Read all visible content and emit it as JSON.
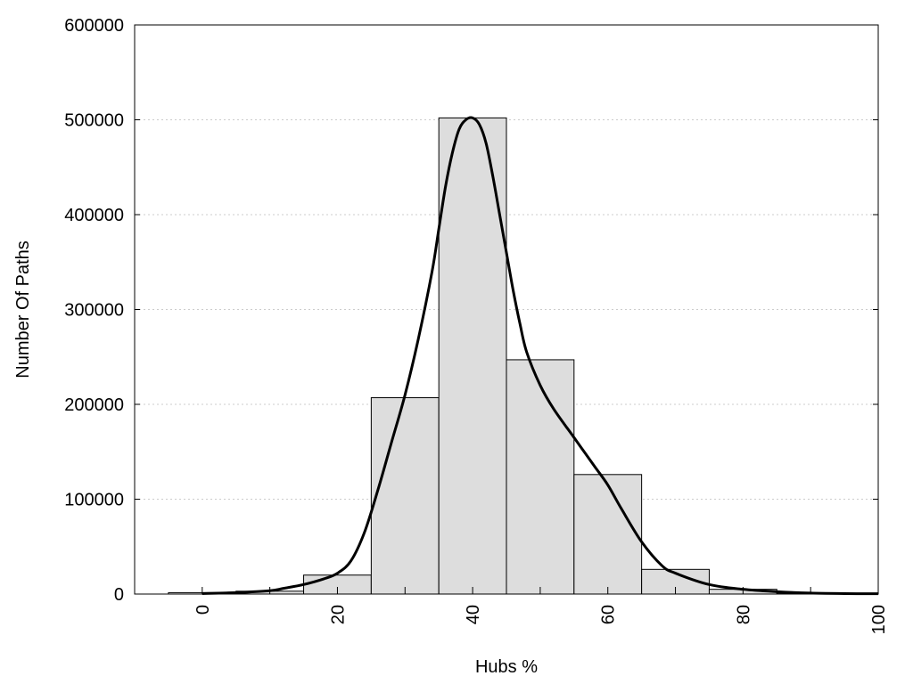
{
  "chart_data": {
    "type": "bar",
    "title": "",
    "xlabel": "Hubs %",
    "ylabel": "Number Of Paths",
    "xlim": [
      -10,
      100
    ],
    "ylim": [
      0,
      600000
    ],
    "grid": "horizontal dotted",
    "legend": "none",
    "x_ticks": [
      0,
      20,
      40,
      60,
      80,
      100
    ],
    "y_ticks": [
      0,
      100000,
      200000,
      300000,
      400000,
      500000,
      600000
    ],
    "bin_width": 10,
    "bins": [
      {
        "center": 0,
        "value": 1500
      },
      {
        "center": 10,
        "value": 3000
      },
      {
        "center": 20,
        "value": 20000
      },
      {
        "center": 30,
        "value": 207000
      },
      {
        "center": 40,
        "value": 502000
      },
      {
        "center": 50,
        "value": 247000
      },
      {
        "center": 60,
        "value": 126000
      },
      {
        "center": 70,
        "value": 26000
      },
      {
        "center": 80,
        "value": 5000
      },
      {
        "center": 90,
        "value": 1000
      }
    ],
    "series": [
      {
        "type": "line",
        "x": [
          0,
          5,
          10,
          12,
          15,
          18,
          20,
          22,
          24,
          26,
          28,
          30,
          32,
          34,
          35,
          36,
          37,
          38,
          39,
          40,
          41,
          42,
          43,
          44,
          45,
          46,
          47,
          48,
          50,
          52,
          55,
          58,
          60,
          62,
          65,
          68,
          70,
          75,
          80,
          85,
          90,
          95,
          100
        ],
        "y": [
          500,
          1500,
          3500,
          6000,
          10000,
          16000,
          22000,
          35000,
          65000,
          110000,
          160000,
          210000,
          270000,
          340000,
          385000,
          430000,
          465000,
          490000,
          500000,
          502000,
          495000,
          475000,
          440000,
          400000,
          360000,
          320000,
          285000,
          255000,
          220000,
          195000,
          165000,
          135000,
          115000,
          90000,
          55000,
          30000,
          22000,
          10000,
          5000,
          2500,
          1000,
          500,
          300
        ],
        "color": "#000000"
      }
    ],
    "colors": {
      "bar_fill": "#dddddd",
      "bar_stroke": "#000000",
      "grid": "#cccccc",
      "line": "#000000"
    }
  }
}
